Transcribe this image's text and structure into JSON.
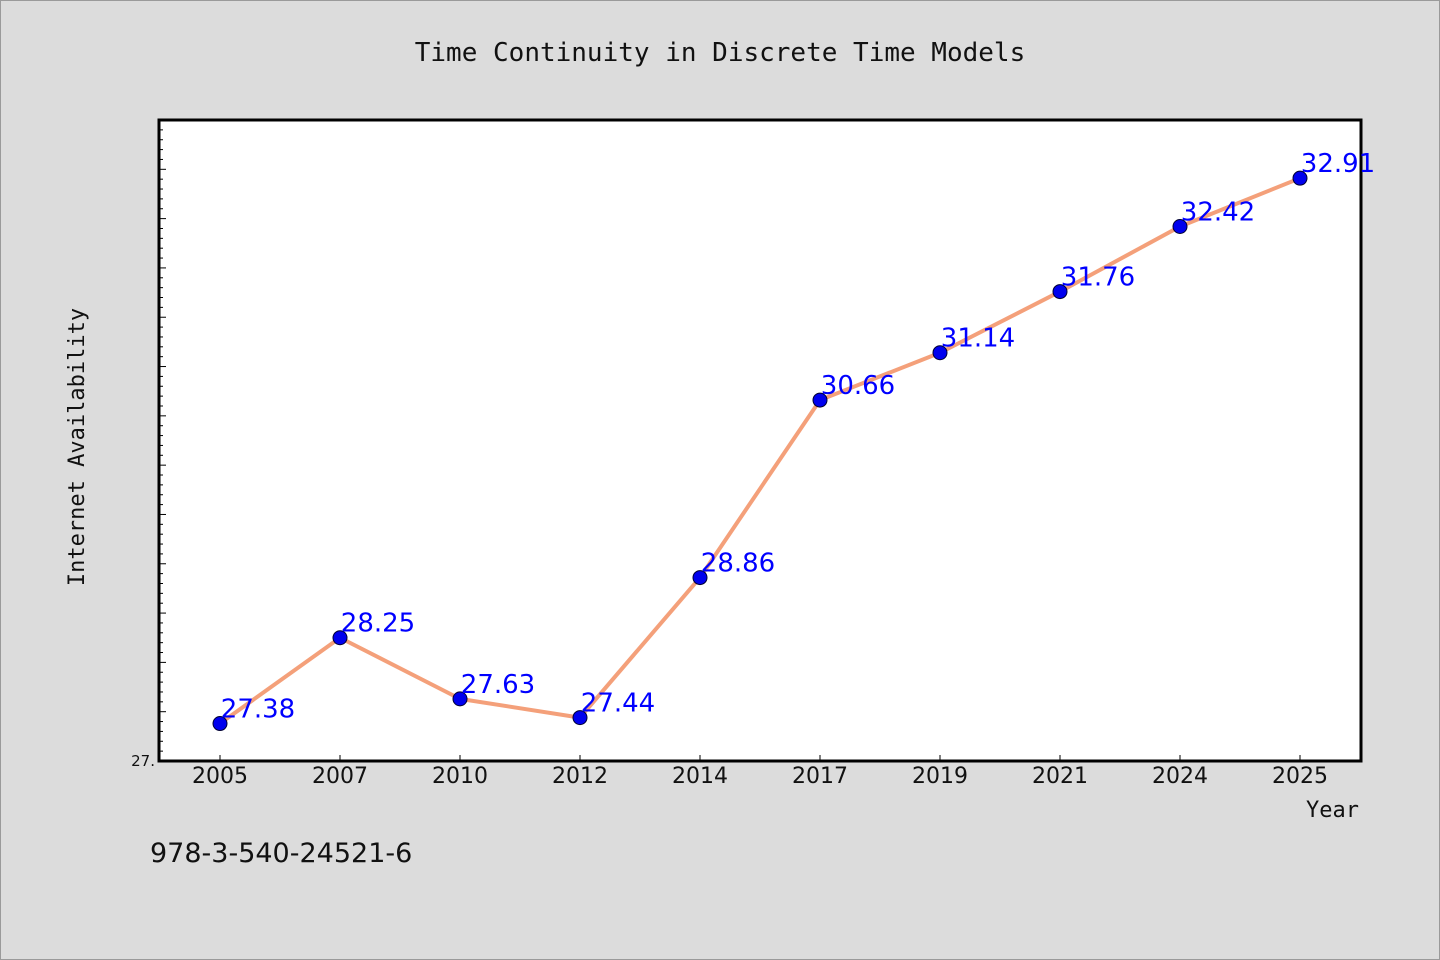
{
  "chart_data": {
    "type": "line",
    "title": "Time Continuity in Discrete Time Models",
    "xlabel": "Year",
    "ylabel": "Internet Availability",
    "categories": [
      "2005",
      "2007",
      "2010",
      "2012",
      "2014",
      "2017",
      "2019",
      "2021",
      "2024",
      "2025"
    ],
    "series": [
      {
        "values": [
          27.38,
          28.25,
          27.63,
          27.44,
          28.86,
          30.66,
          31.14,
          31.76,
          32.42,
          32.91
        ],
        "labels": [
          "27.38",
          "28.25",
          "27.63",
          "27.44",
          "28.86",
          "30.66",
          "31.14",
          "31.76",
          "32.42",
          "32.91"
        ]
      }
    ],
    "ylim": [
      27.0,
      33.5
    ],
    "y_tick_label": "27.",
    "grid": false,
    "colors": {
      "line": "#f4a07a",
      "marker": "#0000ee",
      "label": "#0000ff",
      "background": "#dcdcdc",
      "plot_background": "#ffffff"
    }
  },
  "footer": {
    "text": "978-3-540-24521-6"
  }
}
